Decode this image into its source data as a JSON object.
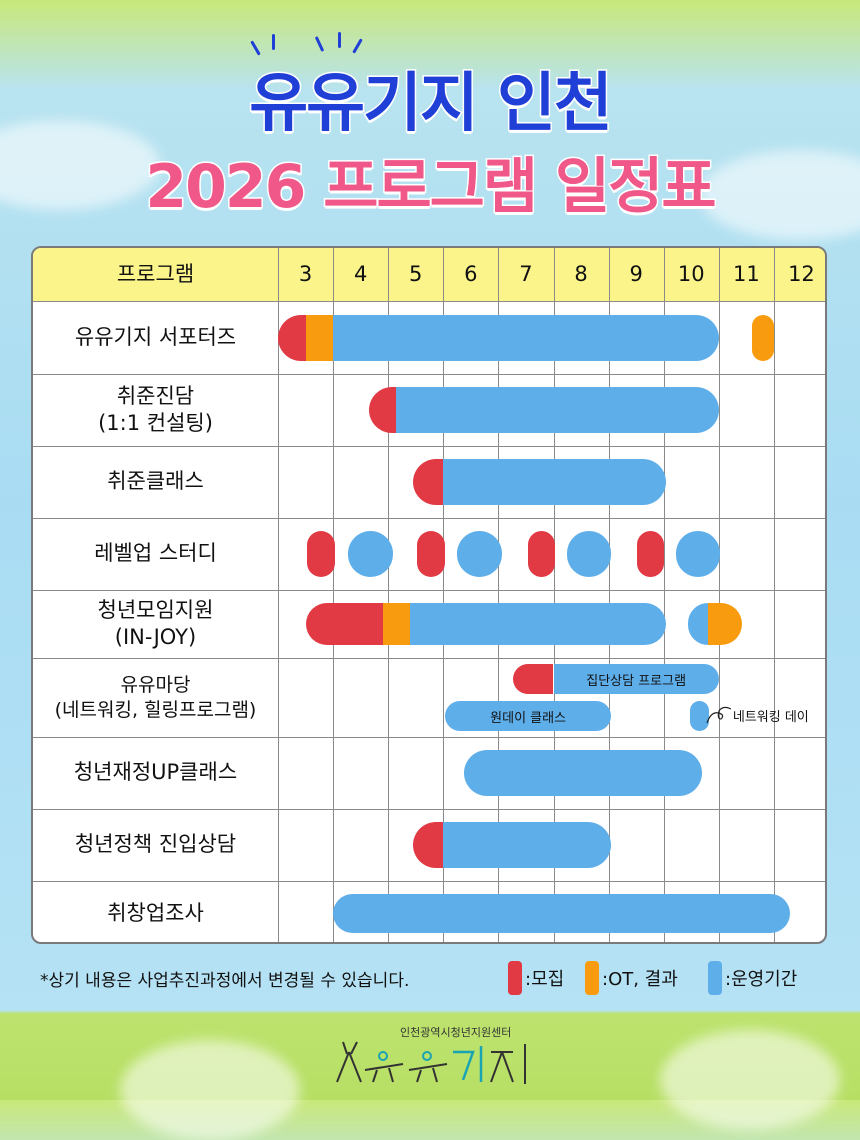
{
  "title_line1": "유유기지 인천",
  "title_line2": "2026 프로그램 일정표",
  "colors": {
    "recruit": "#e13a44",
    "ot": "#f99b0e",
    "operate": "#5eaeea",
    "title_blue": "#1f3fd6",
    "title_pink": "#f0588a",
    "header_bg": "#fbf48a"
  },
  "chart_data": {
    "type": "gantt",
    "row_header": "프로그램",
    "months": [
      "3",
      "4",
      "5",
      "6",
      "7",
      "8",
      "9",
      "10",
      "11",
      "12"
    ],
    "legend": [
      {
        "key": "recruit",
        "label": ":모집"
      },
      {
        "key": "ot",
        "label": ":OT, 결과"
      },
      {
        "key": "operate",
        "label": ":운영기간"
      }
    ],
    "rows": [
      {
        "label": "유유기지 서포터즈",
        "bars": [
          {
            "type": "recruit",
            "start": 3.0,
            "end": 3.5
          },
          {
            "type": "ot",
            "start": 3.5,
            "end": 4.0
          },
          {
            "type": "operate",
            "start": 4.0,
            "end": 11.0
          },
          {
            "type": "ot",
            "start": 11.6,
            "end": 12.0
          }
        ]
      },
      {
        "label": "취준진담\n(1:1 컨설팅)",
        "bars": [
          {
            "type": "recruit",
            "start": 4.65,
            "end": 5.15
          },
          {
            "type": "operate",
            "start": 5.15,
            "end": 11.0
          }
        ]
      },
      {
        "label": "취준클래스",
        "bars": [
          {
            "type": "recruit",
            "start": 5.45,
            "end": 6.0
          },
          {
            "type": "operate",
            "start": 6.0,
            "end": 10.05
          }
        ]
      },
      {
        "label": "레벨업 스터디",
        "bars": [
          {
            "type": "recruit",
            "start": 3.53,
            "end": 4.03
          },
          {
            "type": "operate",
            "start": 4.27,
            "end": 5.08
          },
          {
            "type": "recruit",
            "start": 5.53,
            "end": 6.03
          },
          {
            "type": "operate",
            "start": 6.25,
            "end": 7.07
          },
          {
            "type": "recruit",
            "start": 7.53,
            "end": 8.03
          },
          {
            "type": "operate",
            "start": 8.25,
            "end": 9.05
          },
          {
            "type": "recruit",
            "start": 9.52,
            "end": 10.0
          },
          {
            "type": "operate",
            "start": 10.22,
            "end": 11.02
          }
        ]
      },
      {
        "label": "청년모임지원\n(IN-JOY)",
        "bars": [
          {
            "type": "recruit",
            "start": 3.5,
            "end": 4.9
          },
          {
            "type": "ot",
            "start": 4.9,
            "end": 5.4
          },
          {
            "type": "operate",
            "start": 5.4,
            "end": 10.05
          },
          {
            "type": "operate",
            "start": 10.45,
            "end": 10.8
          },
          {
            "type": "ot",
            "start": 10.8,
            "end": 11.42
          }
        ]
      },
      {
        "label": "유유마당\n(네트워킹, 힐링프로그램)",
        "bars": [
          {
            "type": "recruit",
            "start": 7.27,
            "end": 8.0,
            "lane": 0
          },
          {
            "type": "operate",
            "start": 8.0,
            "end": 11.0,
            "lane": 0,
            "text": "집단상담 프로그램"
          },
          {
            "type": "operate",
            "start": 6.03,
            "end": 9.05,
            "lane": 1,
            "text": "원데이 클래스"
          },
          {
            "type": "operate",
            "start": 10.48,
            "end": 10.82,
            "lane": 1,
            "note": "네트워킹 데이"
          }
        ]
      },
      {
        "label": "청년재정UP클래스",
        "bars": [
          {
            "type": "operate",
            "start": 6.38,
            "end": 10.7
          }
        ]
      },
      {
        "label": "청년정책 진입상담",
        "bars": [
          {
            "type": "recruit",
            "start": 5.45,
            "end": 6.0
          },
          {
            "type": "operate",
            "start": 6.0,
            "end": 9.05
          }
        ]
      },
      {
        "label": "취창업조사",
        "bars": [
          {
            "type": "operate",
            "start": 4.0,
            "end": 12.3
          }
        ]
      }
    ]
  },
  "footnote": "*상기 내용은 사업추진과정에서 변경될 수 있습니다.",
  "footer": {
    "org_name": "인천광역시청년지원센터",
    "logo_text": "유유기지"
  }
}
